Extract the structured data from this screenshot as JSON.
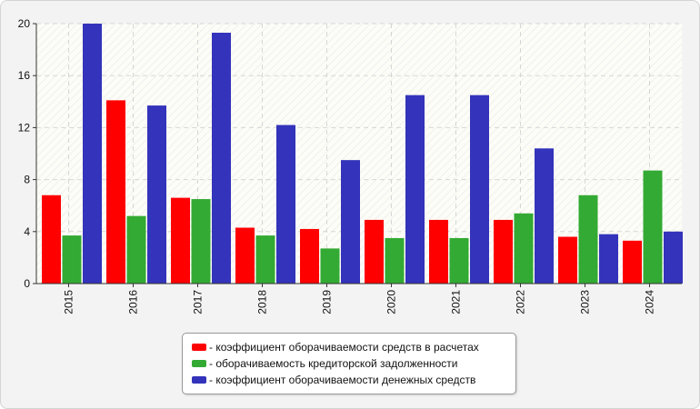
{
  "chart_data": {
    "type": "bar",
    "categories": [
      "2015",
      "2016",
      "2017",
      "2018",
      "2019",
      "2020",
      "2021",
      "2022",
      "2023",
      "2024"
    ],
    "series": [
      {
        "name": "- коэффициент оборачиваемости средств в расчетах",
        "color": "#ff0000",
        "values": [
          6.8,
          14.1,
          6.6,
          4.3,
          4.2,
          4.9,
          4.9,
          4.9,
          3.6,
          3.3
        ]
      },
      {
        "name": "- оборачиваемость кредиторской задолженности",
        "color": "#33aa33",
        "values": [
          3.7,
          5.2,
          6.5,
          3.7,
          2.7,
          3.5,
          3.5,
          5.4,
          6.8,
          8.7
        ]
      },
      {
        "name": "- коэффициент оборачиваемости денежных средств",
        "color": "#3333bb",
        "values": [
          20.0,
          13.7,
          19.3,
          12.2,
          9.5,
          14.5,
          14.5,
          10.4,
          3.8,
          4.0
        ]
      }
    ],
    "yticks": [
      0,
      4,
      8,
      12,
      16,
      20
    ],
    "ylim": [
      0,
      20
    ],
    "grid": true,
    "legend_position": "bottom"
  }
}
